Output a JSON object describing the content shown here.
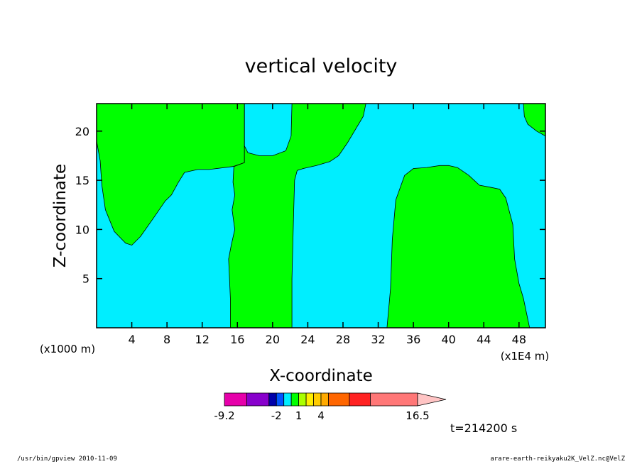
{
  "chart_data": {
    "type": "heatmap",
    "title": "vertical velocity",
    "xlabel": "X-coordinate",
    "ylabel": "Z-coordinate",
    "x_unit_left": "(x1000 m)",
    "x_unit_right": "(x1E4 m)",
    "xlim": [
      0,
      51
    ],
    "ylim": [
      0,
      22.8
    ],
    "x_ticks": [
      4,
      8,
      12,
      16,
      20,
      24,
      28,
      32,
      36,
      40,
      44,
      48
    ],
    "y_ticks": [
      5,
      10,
      15,
      20
    ],
    "background_color": "#00eeff",
    "region_color": "#00ff00",
    "regions": [
      {
        "name": "upper-left-green",
        "points": [
          [
            0,
            22.8
          ],
          [
            16.8,
            22.8
          ],
          [
            16.8,
            16.8
          ],
          [
            15.5,
            16.4
          ],
          [
            12.8,
            16.1
          ],
          [
            11.5,
            16.1
          ],
          [
            10,
            15.8
          ],
          [
            9.3,
            14.8
          ],
          [
            8.5,
            13.5
          ],
          [
            7.8,
            12.9
          ],
          [
            6.5,
            11.2
          ],
          [
            5,
            9.3
          ],
          [
            4,
            8.4
          ],
          [
            3.3,
            8.6
          ],
          [
            2,
            9.8
          ],
          [
            1,
            12
          ],
          [
            0.6,
            14.5
          ],
          [
            0.4,
            17
          ],
          [
            0,
            19
          ]
        ]
      },
      {
        "name": "central-green-column",
        "points": [
          [
            16.8,
            22.8
          ],
          [
            16.8,
            18.5
          ],
          [
            17.2,
            17.8
          ],
          [
            18.5,
            17.5
          ],
          [
            20,
            17.5
          ],
          [
            21.5,
            18
          ],
          [
            22.1,
            19.5
          ],
          [
            22.2,
            22.8
          ],
          [
            30.6,
            22.8
          ],
          [
            30.3,
            21.5
          ],
          [
            29.3,
            20
          ],
          [
            28.5,
            18.8
          ],
          [
            27.5,
            17.5
          ],
          [
            26.5,
            16.9
          ],
          [
            25,
            16.5
          ],
          [
            23.5,
            16.2
          ],
          [
            22.8,
            16
          ],
          [
            22.5,
            15
          ],
          [
            22.4,
            12
          ],
          [
            22.2,
            5
          ],
          [
            22.2,
            0
          ],
          [
            15.2,
            0
          ],
          [
            15.2,
            3
          ],
          [
            15.0,
            7
          ],
          [
            15.3,
            8.4
          ],
          [
            15.7,
            10
          ],
          [
            15.4,
            12
          ],
          [
            15.7,
            13.5
          ],
          [
            15.5,
            14.8
          ],
          [
            15.6,
            16.4
          ],
          [
            16.8,
            16.8
          ]
        ]
      },
      {
        "name": "right-green-column",
        "points": [
          [
            33,
            0
          ],
          [
            33.4,
            4
          ],
          [
            33.6,
            9
          ],
          [
            34,
            13
          ],
          [
            35,
            15.5
          ],
          [
            36,
            16.2
          ],
          [
            37.5,
            16.3
          ],
          [
            39,
            16.5
          ],
          [
            40,
            16.5
          ],
          [
            41,
            16.3
          ],
          [
            42.3,
            15.5
          ],
          [
            43.5,
            14.5
          ],
          [
            44.7,
            14.3
          ],
          [
            45.8,
            14.1
          ],
          [
            46.5,
            13.2
          ],
          [
            47.3,
            10.5
          ],
          [
            47.5,
            7
          ],
          [
            48,
            4.5
          ],
          [
            48.5,
            3
          ],
          [
            49.2,
            0
          ]
        ]
      },
      {
        "name": "top-right-green",
        "points": [
          [
            48.5,
            22.8
          ],
          [
            51,
            22.8
          ],
          [
            51,
            19.5
          ],
          [
            50,
            20
          ],
          [
            49,
            20.7
          ],
          [
            48.6,
            21.5
          ]
        ]
      }
    ],
    "colorbar": {
      "tick_labels": [
        "-9.2",
        "-2",
        "1",
        "4",
        "16.5"
      ],
      "segments": [
        {
          "color": "#e600aa",
          "from": -9.2,
          "to": -6
        },
        {
          "color": "#8800cc",
          "from": -6,
          "to": -3
        },
        {
          "color": "#0000aa",
          "from": -3,
          "to": -2
        },
        {
          "color": "#0055ff",
          "from": -2,
          "to": -1
        },
        {
          "color": "#00eeff",
          "from": -1,
          "to": 0
        },
        {
          "color": "#00ff00",
          "from": 0,
          "to": 1
        },
        {
          "color": "#aaff00",
          "from": 1,
          "to": 2
        },
        {
          "color": "#ffee00",
          "from": 2,
          "to": 3
        },
        {
          "color": "#ffcc00",
          "from": 3,
          "to": 4
        },
        {
          "color": "#ffaa00",
          "from": 4,
          "to": 5
        },
        {
          "color": "#ff6600",
          "from": 5,
          "to": 7.5
        },
        {
          "color": "#ff2222",
          "from": 7.5,
          "to": 10
        },
        {
          "color": "#ff7777",
          "from": 10,
          "to": 16.5
        }
      ],
      "arrow_color": "#ffc4c4"
    },
    "time_label": "t=214200 s"
  },
  "footer": {
    "left": "/usr/bin/gpview   2010-11-09",
    "right": "arare-earth-reikyaku2K_VelZ.nc@VelZ"
  }
}
